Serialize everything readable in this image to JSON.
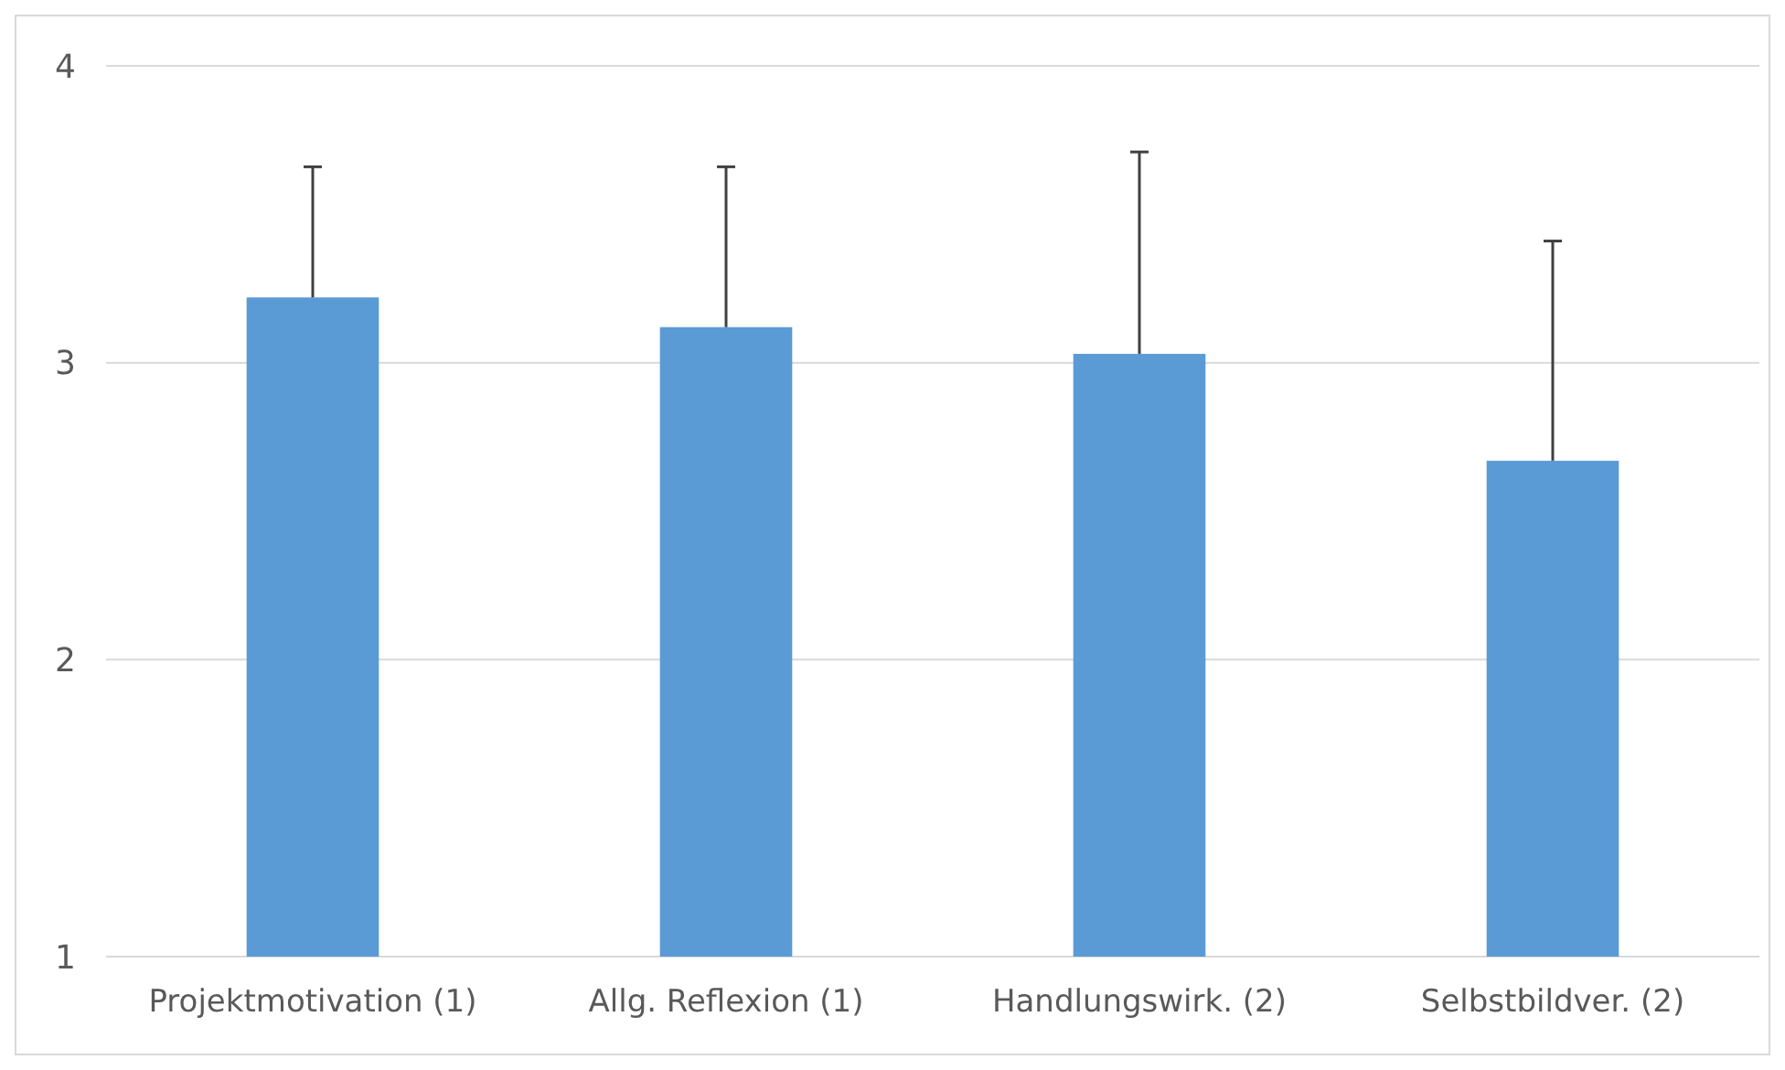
{
  "chart_data": {
    "type": "bar",
    "categories": [
      "Projektmotivation (1)",
      "Allg. Reflexion (1)",
      "Handlungswirk. (2)",
      "Selbstbildver. (2)"
    ],
    "values": [
      3.22,
      3.12,
      3.03,
      2.67
    ],
    "errors": [
      [
        3.22,
        3.66
      ],
      [
        3.12,
        3.66
      ],
      [
        3.03,
        3.71
      ],
      [
        2.67,
        3.41
      ]
    ],
    "color": "#5b9bd5",
    "ylim": [
      1,
      4
    ],
    "yticks": [
      1,
      2,
      3,
      4
    ],
    "grid": "y"
  }
}
